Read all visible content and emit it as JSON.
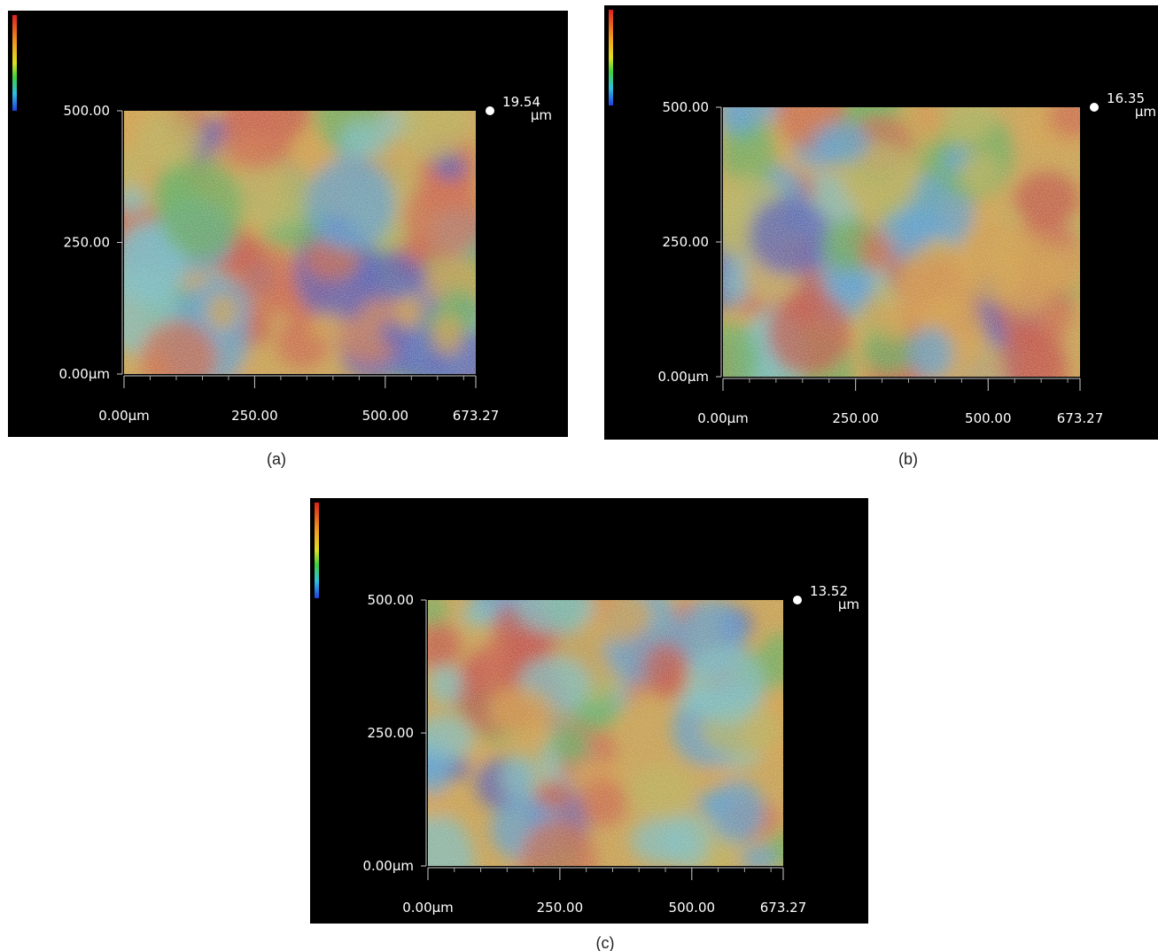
{
  "panels": [
    {
      "caption": "(a)",
      "y_ticks": [
        "500.00",
        "250.00",
        "0.00µm"
      ],
      "x_ticks": [
        "0.00µm",
        "250.00",
        "500.00",
        "673.27"
      ],
      "max_height": "19.54",
      "unit": "µm"
    },
    {
      "caption": "(b)",
      "y_ticks": [
        "500.00",
        "250.00",
        "0.00µm"
      ],
      "x_ticks": [
        "0.00µm",
        "250.00",
        "500.00",
        "673.27"
      ],
      "max_height": "16.35",
      "unit": "µm"
    },
    {
      "caption": "(c)",
      "y_ticks": [
        "500.00",
        "250.00",
        "0.00µm"
      ],
      "x_ticks": [
        "0.00µm",
        "250.00",
        "500.00",
        "673.27"
      ],
      "max_height": "13.52",
      "unit": "µm"
    }
  ]
}
